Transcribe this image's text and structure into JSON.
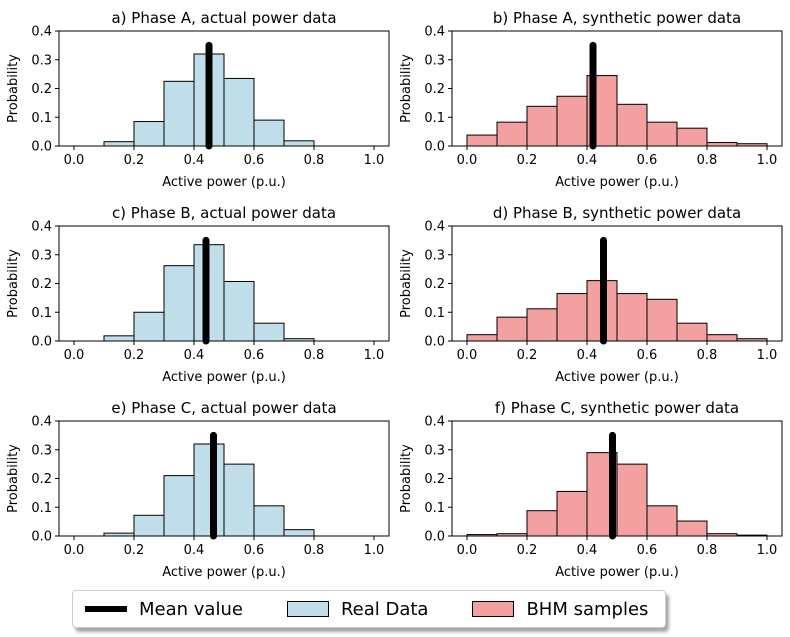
{
  "colors": {
    "real": "#c0dfea",
    "synthetic": "#f2a0a0",
    "mean": "#000000",
    "edge": "#000000"
  },
  "legend": {
    "mean_label": "Mean value",
    "real_label": "Real Data",
    "bhm_label": "BHM samples",
    "placement": "bottom-center"
  },
  "chart_data": [
    {
      "type": "bar",
      "title": "a) Phase A, actual power data",
      "xlabel": "Active power (p.u.)",
      "ylabel": "Probability",
      "series_type": "real",
      "bin_edges": [
        0.0,
        0.1,
        0.2,
        0.3,
        0.4,
        0.5,
        0.6,
        0.7,
        0.8,
        0.9,
        1.0
      ],
      "values": [
        0.0,
        0.015,
        0.085,
        0.225,
        0.32,
        0.235,
        0.09,
        0.018,
        0.0,
        0.0
      ],
      "mean": 0.45,
      "mean_line_top": 0.35,
      "xlim": [
        -0.05,
        1.05
      ],
      "ylim": [
        0,
        0.4
      ],
      "xticks": [
        "0.0",
        "0.2",
        "0.4",
        "0.6",
        "0.8",
        "1.0"
      ],
      "yticks": [
        "0.0",
        "0.1",
        "0.2",
        "0.3",
        "0.4"
      ]
    },
    {
      "type": "bar",
      "title": "b) Phase A, synthetic power data",
      "xlabel": "Active power (p.u.)",
      "ylabel": "Probability",
      "series_type": "synthetic",
      "bin_edges": [
        0.0,
        0.1,
        0.2,
        0.3,
        0.4,
        0.5,
        0.6,
        0.7,
        0.8,
        0.9,
        1.0
      ],
      "values": [
        0.038,
        0.083,
        0.138,
        0.173,
        0.245,
        0.145,
        0.083,
        0.062,
        0.012,
        0.008
      ],
      "mean": 0.42,
      "mean_line_top": 0.35,
      "xlim": [
        -0.05,
        1.05
      ],
      "ylim": [
        0,
        0.4
      ],
      "xticks": [
        "0.0",
        "0.2",
        "0.4",
        "0.6",
        "0.8",
        "1.0"
      ],
      "yticks": [
        "0.0",
        "0.1",
        "0.2",
        "0.3",
        "0.4"
      ]
    },
    {
      "type": "bar",
      "title": "c) Phase B, actual power data",
      "xlabel": "Active power (p.u.)",
      "ylabel": "Probability",
      "series_type": "real",
      "bin_edges": [
        0.0,
        0.1,
        0.2,
        0.3,
        0.4,
        0.5,
        0.6,
        0.7,
        0.8,
        0.9,
        1.0
      ],
      "values": [
        0.0,
        0.018,
        0.1,
        0.262,
        0.335,
        0.207,
        0.062,
        0.008,
        0.0,
        0.0
      ],
      "mean": 0.44,
      "mean_line_top": 0.35,
      "xlim": [
        -0.05,
        1.05
      ],
      "ylim": [
        0,
        0.4
      ],
      "xticks": [
        "0.0",
        "0.2",
        "0.4",
        "0.6",
        "0.8",
        "1.0"
      ],
      "yticks": [
        "0.0",
        "0.1",
        "0.2",
        "0.3",
        "0.4"
      ]
    },
    {
      "type": "bar",
      "title": "d) Phase B, synthetic power data",
      "xlabel": "Active power (p.u.)",
      "ylabel": "Probability",
      "series_type": "synthetic",
      "bin_edges": [
        0.0,
        0.1,
        0.2,
        0.3,
        0.4,
        0.5,
        0.6,
        0.7,
        0.8,
        0.9,
        1.0
      ],
      "values": [
        0.022,
        0.083,
        0.112,
        0.165,
        0.21,
        0.165,
        0.145,
        0.062,
        0.022,
        0.008
      ],
      "mean": 0.455,
      "mean_line_top": 0.35,
      "xlim": [
        -0.05,
        1.05
      ],
      "ylim": [
        0,
        0.4
      ],
      "xticks": [
        "0.0",
        "0.2",
        "0.4",
        "0.6",
        "0.8",
        "1.0"
      ],
      "yticks": [
        "0.0",
        "0.1",
        "0.2",
        "0.3",
        "0.4"
      ]
    },
    {
      "type": "bar",
      "title": "e) Phase C, actual power data",
      "xlabel": "Active power (p.u.)",
      "ylabel": "Probability",
      "series_type": "real",
      "bin_edges": [
        0.0,
        0.1,
        0.2,
        0.3,
        0.4,
        0.5,
        0.6,
        0.7,
        0.8,
        0.9,
        1.0
      ],
      "values": [
        0.0,
        0.01,
        0.072,
        0.21,
        0.32,
        0.25,
        0.105,
        0.022,
        0.0,
        0.0
      ],
      "mean": 0.465,
      "mean_line_top": 0.35,
      "xlim": [
        -0.05,
        1.05
      ],
      "ylim": [
        0,
        0.4
      ],
      "xticks": [
        "0.0",
        "0.2",
        "0.4",
        "0.6",
        "0.8",
        "1.0"
      ],
      "yticks": [
        "0.0",
        "0.1",
        "0.2",
        "0.3",
        "0.4"
      ]
    },
    {
      "type": "bar",
      "title": "f) Phase C, synthetic power data",
      "xlabel": "Active power (p.u.)",
      "ylabel": "Probability",
      "series_type": "synthetic",
      "bin_edges": [
        0.0,
        0.1,
        0.2,
        0.3,
        0.4,
        0.5,
        0.6,
        0.7,
        0.8,
        0.9,
        1.0
      ],
      "values": [
        0.005,
        0.008,
        0.088,
        0.155,
        0.29,
        0.25,
        0.105,
        0.052,
        0.008,
        0.003
      ],
      "mean": 0.485,
      "mean_line_top": 0.35,
      "xlim": [
        -0.05,
        1.05
      ],
      "ylim": [
        0,
        0.4
      ],
      "xticks": [
        "0.0",
        "0.2",
        "0.4",
        "0.6",
        "0.8",
        "1.0"
      ],
      "yticks": [
        "0.0",
        "0.1",
        "0.2",
        "0.3",
        "0.4"
      ]
    }
  ]
}
